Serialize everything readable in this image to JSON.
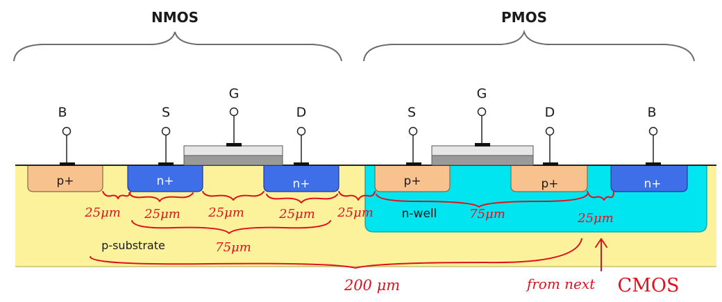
{
  "headings": {
    "nmos": "NMOS",
    "pmos": "PMOS"
  },
  "terminals": {
    "nmos": {
      "body": "B",
      "source": "S",
      "gate": "G",
      "drain": "D"
    },
    "pmos": {
      "source": "S",
      "gate": "G",
      "drain": "D",
      "body": "B"
    }
  },
  "regions": {
    "nmos_body": "p+",
    "nmos_source": "n+",
    "nmos_drain": "n+",
    "pmos_source": "p+",
    "pmos_drain": "p+",
    "pmos_body": "n+",
    "well": "n-well",
    "substrate": "p-substrate"
  },
  "annotations": {
    "dim_1": "25μm",
    "dim_2": "25μm",
    "dim_3": "25μm",
    "dim_4": "25μm",
    "dim_5": "25μm",
    "dim_pmos": "75μm",
    "dim_pmos_end": "25μm",
    "dim_nmos_total": "75μm",
    "dim_total": "200 μm",
    "note": "from next",
    "note_cmos": "CMOS"
  },
  "colors": {
    "substrate": "#fbf29b",
    "nwell": "#00e5f0",
    "n_plus": "#3f6fe8",
    "p_plus": "#f7c28e",
    "annotation": "#e0101c"
  }
}
